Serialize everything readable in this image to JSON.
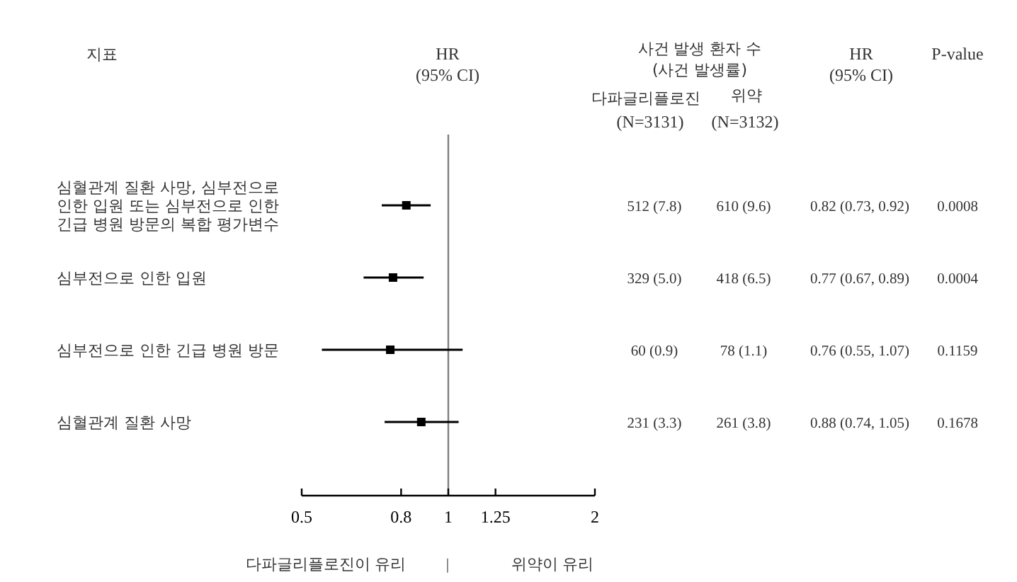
{
  "chart_data": {
    "type": "scatter",
    "orientation": "horizontal",
    "ylabel": "지표",
    "categories": [
      "심혈관계 질환 사망, 심부전으로 인한 입원 또는 심부전으로 인한 긴급 병원 방문의 복합 평가변수",
      "심부전으로 인한 입원",
      "심부전으로 인한 긴급 병원 방문",
      "심혈관계 질환 사망"
    ],
    "values": [
      0.82,
      0.77,
      0.76,
      0.88
    ],
    "errors": [
      [
        0.73,
        0.92
      ],
      [
        0.67,
        0.89
      ],
      [
        0.55,
        1.07
      ],
      [
        0.74,
        1.05
      ]
    ],
    "value_labels": [
      "0.82 (0.73, 0.92)",
      "0.77 (0.67, 0.89)",
      "0.76 (0.55, 1.07)",
      "0.88 (0.74, 1.05)"
    ],
    "color": "#000000",
    "marker": "square",
    "log": "x",
    "xlim": [
      0.5,
      2
    ],
    "xticks": [
      0.5,
      0.8,
      1,
      1.25,
      2
    ],
    "ref_lines": [
      {
        "axis": "x",
        "value": 1,
        "color": "#808080"
      }
    ],
    "annotations": [
      "HR",
      "(95% CI)",
      "사건 발생 환자 수",
      "(사건 발생률)",
      "다파글리플로진",
      "위약",
      "(N=3131)",
      "(N=3132)",
      "HR",
      "(95% CI)",
      "P-value",
      "512 (7.8)",
      "610 (9.6)",
      "0.0008",
      "329 (5.0)",
      "418 (6.5)",
      "0.0004",
      "60 (0.9)",
      "78 (1.1)",
      "0.1159",
      "231 (3.3)",
      "261 (3.8)",
      "0.1678",
      "다파글리플로진이 유리",
      "|",
      "위약이 유리"
    ]
  }
}
